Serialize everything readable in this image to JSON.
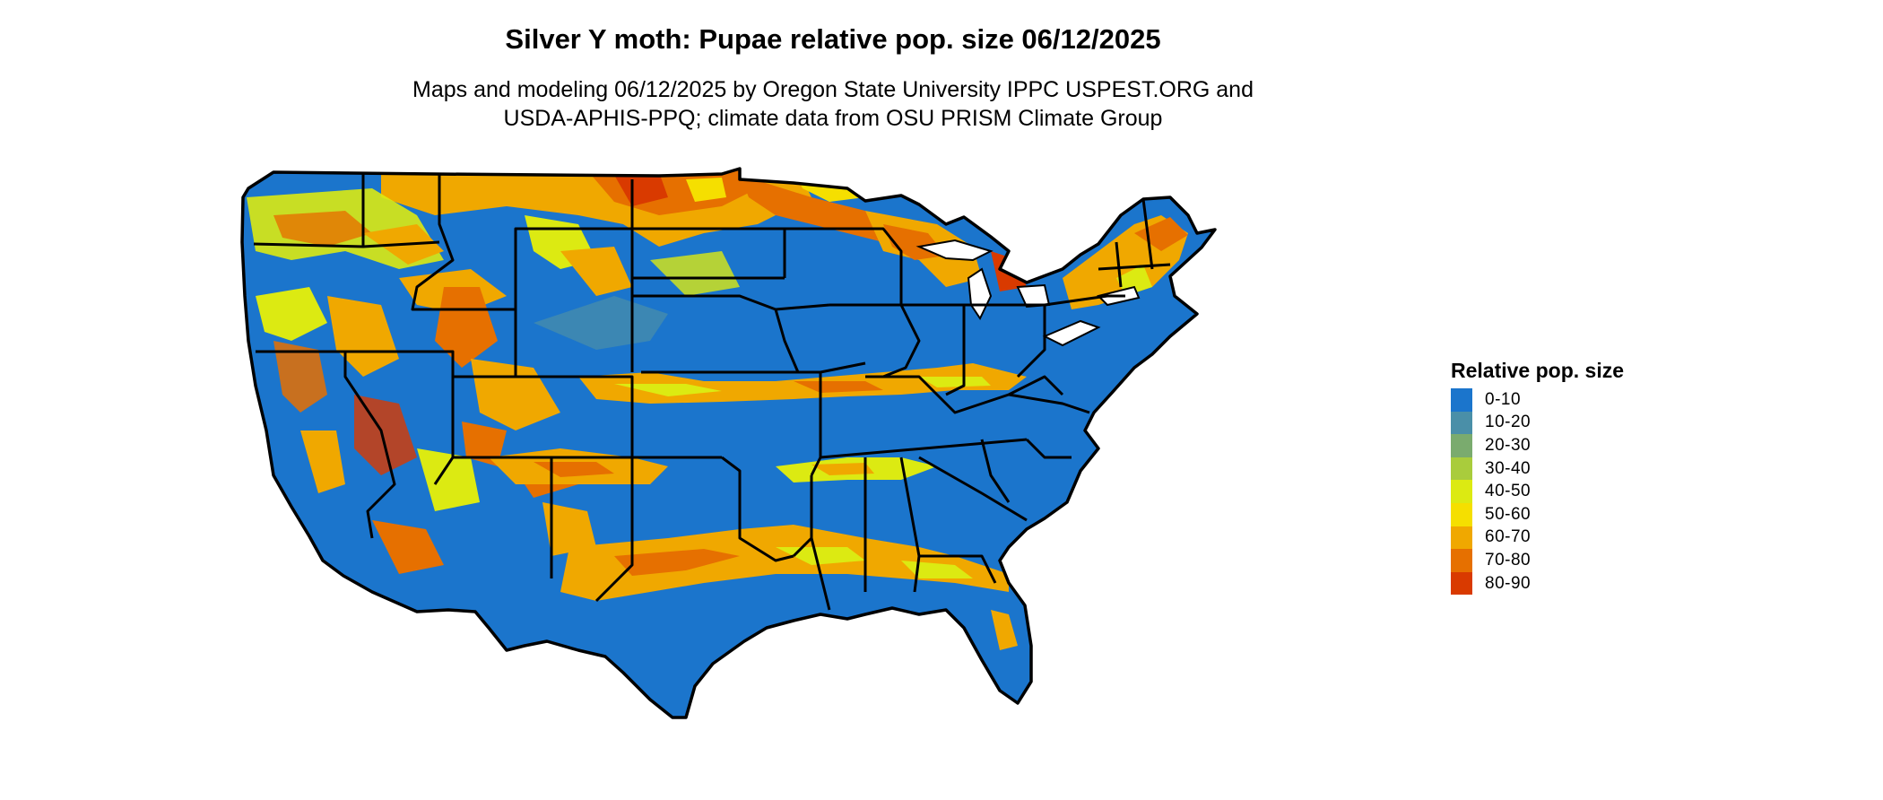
{
  "title": "Silver Y moth: Pupae relative pop. size 06/12/2025",
  "subtitle_lines": [
    "Maps and modeling 06/12/2025 by Oregon State University IPPC USPEST.ORG and",
    "USDA-APHIS-PPQ; climate data from OSU PRISM Climate Group"
  ],
  "legend": {
    "title": "Relative pop. size",
    "items": [
      {
        "label": "0-10",
        "color": "#1b75cc"
      },
      {
        "label": "10-20",
        "color": "#4a8fa8"
      },
      {
        "label": "20-30",
        "color": "#7aab6e"
      },
      {
        "label": "30-40",
        "color": "#a9cc3c"
      },
      {
        "label": "40-50",
        "color": "#dcea12"
      },
      {
        "label": "50-60",
        "color": "#f5df00"
      },
      {
        "label": "60-70",
        "color": "#f0a800"
      },
      {
        "label": "70-80",
        "color": "#e67000"
      },
      {
        "label": "80-90",
        "color": "#d93a00"
      }
    ]
  },
  "map": {
    "region": "Contiguous United States",
    "border_color": "#000000"
  }
}
